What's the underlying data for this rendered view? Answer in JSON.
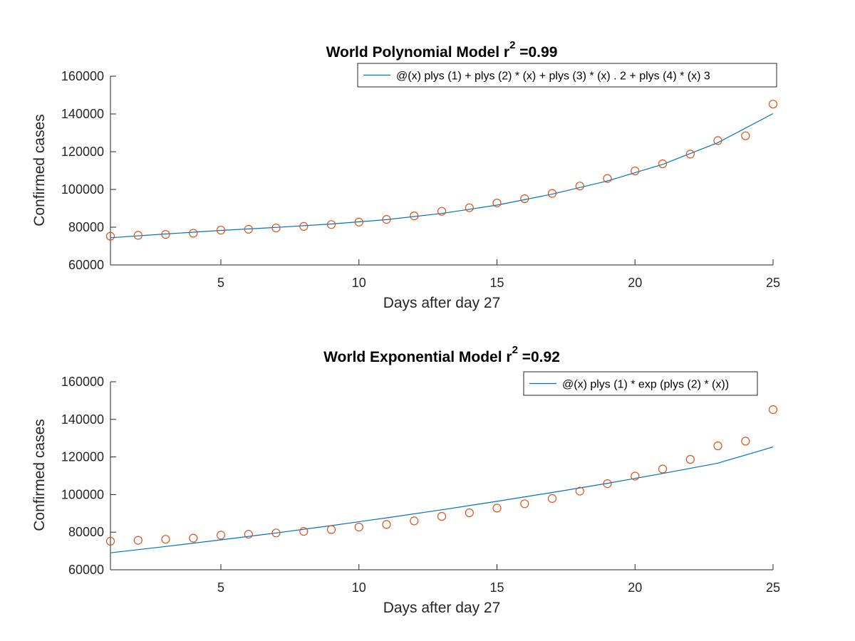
{
  "colors": {
    "fit": "#0072BD",
    "data": "#D95319"
  },
  "chart_data": [
    {
      "type": "scatter",
      "title": "World Polynomial Model r",
      "title_sup": "2",
      "title_suffix": " =0.99",
      "xlabel": "Days after day 27",
      "ylabel": "Confirmed cases",
      "xlim": [
        1,
        25
      ],
      "ylim": [
        60000,
        160000
      ],
      "xticks": [
        5,
        10,
        15,
        20,
        25
      ],
      "yticks": [
        60000,
        80000,
        100000,
        120000,
        140000,
        160000
      ],
      "legend_position": "top-right",
      "series": [
        {
          "name": "@(x) plys (1) + plys (2) * (x) + plys (3) * (x) . 2 + plys (4) * (x)  3",
          "kind": "line",
          "x": [
            1,
            3,
            5,
            7,
            9,
            11,
            13,
            15,
            17,
            19,
            21,
            23,
            25
          ],
          "values": [
            74400,
            76400,
            78300,
            79900,
            81700,
            84000,
            87300,
            91700,
            97500,
            104500,
            113300,
            124800,
            140200
          ]
        },
        {
          "kind": "markers",
          "x": [
            1,
            2,
            3,
            4,
            5,
            6,
            7,
            8,
            9,
            10,
            11,
            12,
            13,
            14,
            15,
            16,
            17,
            18,
            19,
            20,
            21,
            22,
            23,
            24,
            25
          ],
          "values": [
            75200,
            75700,
            76200,
            76800,
            78400,
            78900,
            79600,
            80400,
            81400,
            82700,
            84100,
            86000,
            88400,
            90300,
            92800,
            95100,
            97900,
            101800,
            105800,
            109800,
            113600,
            118700,
            125900,
            128400,
            145200
          ]
        }
      ]
    },
    {
      "type": "scatter",
      "title": "World Exponential Model r",
      "title_sup": "2",
      "title_suffix": " =0.92",
      "xlabel": "Days after day 27",
      "ylabel": "Confirmed cases",
      "xlim": [
        1,
        25
      ],
      "ylim": [
        60000,
        160000
      ],
      "xticks": [
        5,
        10,
        15,
        20,
        25
      ],
      "yticks": [
        60000,
        80000,
        100000,
        120000,
        140000,
        160000
      ],
      "legend_position": "top-right",
      "series": [
        {
          "name": "@(x) plys (1) * exp (plys (2) * (x))",
          "kind": "line",
          "x": [
            1,
            3,
            5,
            7,
            9,
            11,
            13,
            15,
            17,
            19,
            21,
            23,
            25
          ],
          "values": [
            69000,
            72400,
            75900,
            79600,
            83500,
            87600,
            91900,
            96400,
            101100,
            106000,
            111200,
            116700,
            125300
          ]
        },
        {
          "kind": "markers",
          "x": [
            1,
            2,
            3,
            4,
            5,
            6,
            7,
            8,
            9,
            10,
            11,
            12,
            13,
            14,
            15,
            16,
            17,
            18,
            19,
            20,
            21,
            22,
            23,
            24,
            25
          ],
          "values": [
            75200,
            75700,
            76200,
            76800,
            78400,
            78900,
            79600,
            80400,
            81400,
            82700,
            84100,
            86000,
            88400,
            90300,
            92800,
            95100,
            97900,
            101800,
            105800,
            109800,
            113600,
            118700,
            125900,
            128400,
            145200
          ]
        }
      ]
    }
  ]
}
